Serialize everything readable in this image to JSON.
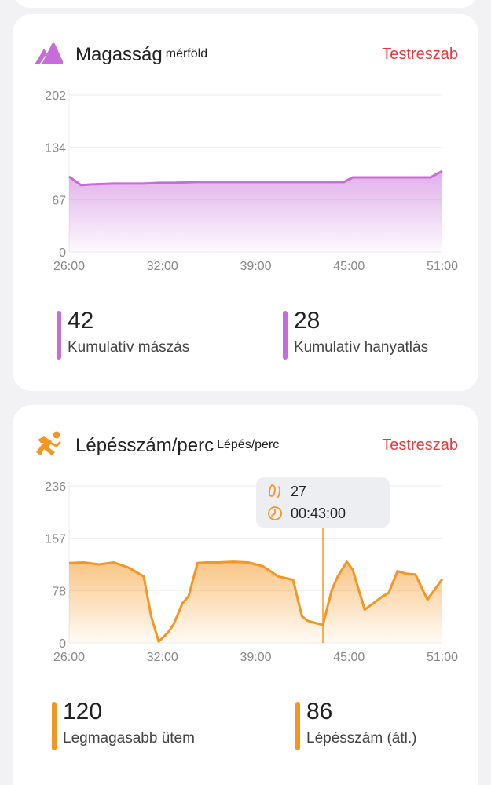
{
  "altitude_card": {
    "title": "Magasság",
    "unit": "mérföld",
    "action": "Testreszab",
    "icon": "mountain-icon",
    "color": "#c86cd9",
    "stats": [
      {
        "value": "42",
        "label": "Kumulatív mászás"
      },
      {
        "value": "28",
        "label": "Kumulatív hanyatlás"
      }
    ]
  },
  "cadence_card": {
    "title": "Lépésszám/perc",
    "unit": "Lépés/perc",
    "action": "Testreszab",
    "icon": "running-icon",
    "color": "#f59622",
    "tooltip": {
      "steps": "27",
      "time": "00:43:00"
    },
    "stats": [
      {
        "value": "120",
        "label": "Legmagasabb ütem"
      },
      {
        "value": "86",
        "label": "Lépésszám (átl.)"
      }
    ]
  },
  "chart_data": [
    {
      "type": "area",
      "y_ticks": [
        "202",
        "134",
        "67",
        "0"
      ],
      "x_ticks": [
        "26:00",
        "32:00",
        "39:00",
        "45:00",
        "51:00"
      ],
      "ylim": [
        0,
        202
      ],
      "xlim": [
        26,
        51
      ],
      "x": [
        26,
        26.8,
        27.5,
        29,
        31,
        32,
        33,
        34.5,
        37,
        39,
        42,
        44.4,
        45,
        47,
        50.2,
        51
      ],
      "values": [
        97,
        86,
        87,
        88,
        88,
        89,
        89,
        90,
        90,
        90,
        90,
        90,
        96,
        96,
        96,
        104
      ]
    },
    {
      "type": "area",
      "y_ticks": [
        "236",
        "157",
        "78",
        "0"
      ],
      "x_ticks": [
        "26:00",
        "32:00",
        "39:00",
        "45:00",
        "51:00"
      ],
      "ylim": [
        0,
        236
      ],
      "xlim": [
        26,
        51
      ],
      "cursor_x": 43,
      "x": [
        26,
        27,
        28,
        29,
        30,
        31,
        31.5,
        32,
        32.6,
        33,
        33.6,
        34,
        34.6,
        35.2,
        36,
        37,
        38,
        39,
        40,
        41,
        41.6,
        42,
        43,
        43.6,
        44,
        44.6,
        45,
        45.8,
        46.4,
        47,
        47.4,
        48,
        48.6,
        49.2,
        50,
        51
      ],
      "values": [
        120,
        121,
        118,
        121,
        113,
        100,
        40,
        2,
        15,
        28,
        60,
        70,
        120,
        121,
        121,
        122,
        121,
        115,
        100,
        95,
        40,
        33,
        27,
        80,
        100,
        122,
        110,
        50,
        60,
        70,
        75,
        108,
        104,
        103,
        65,
        96
      ]
    }
  ]
}
